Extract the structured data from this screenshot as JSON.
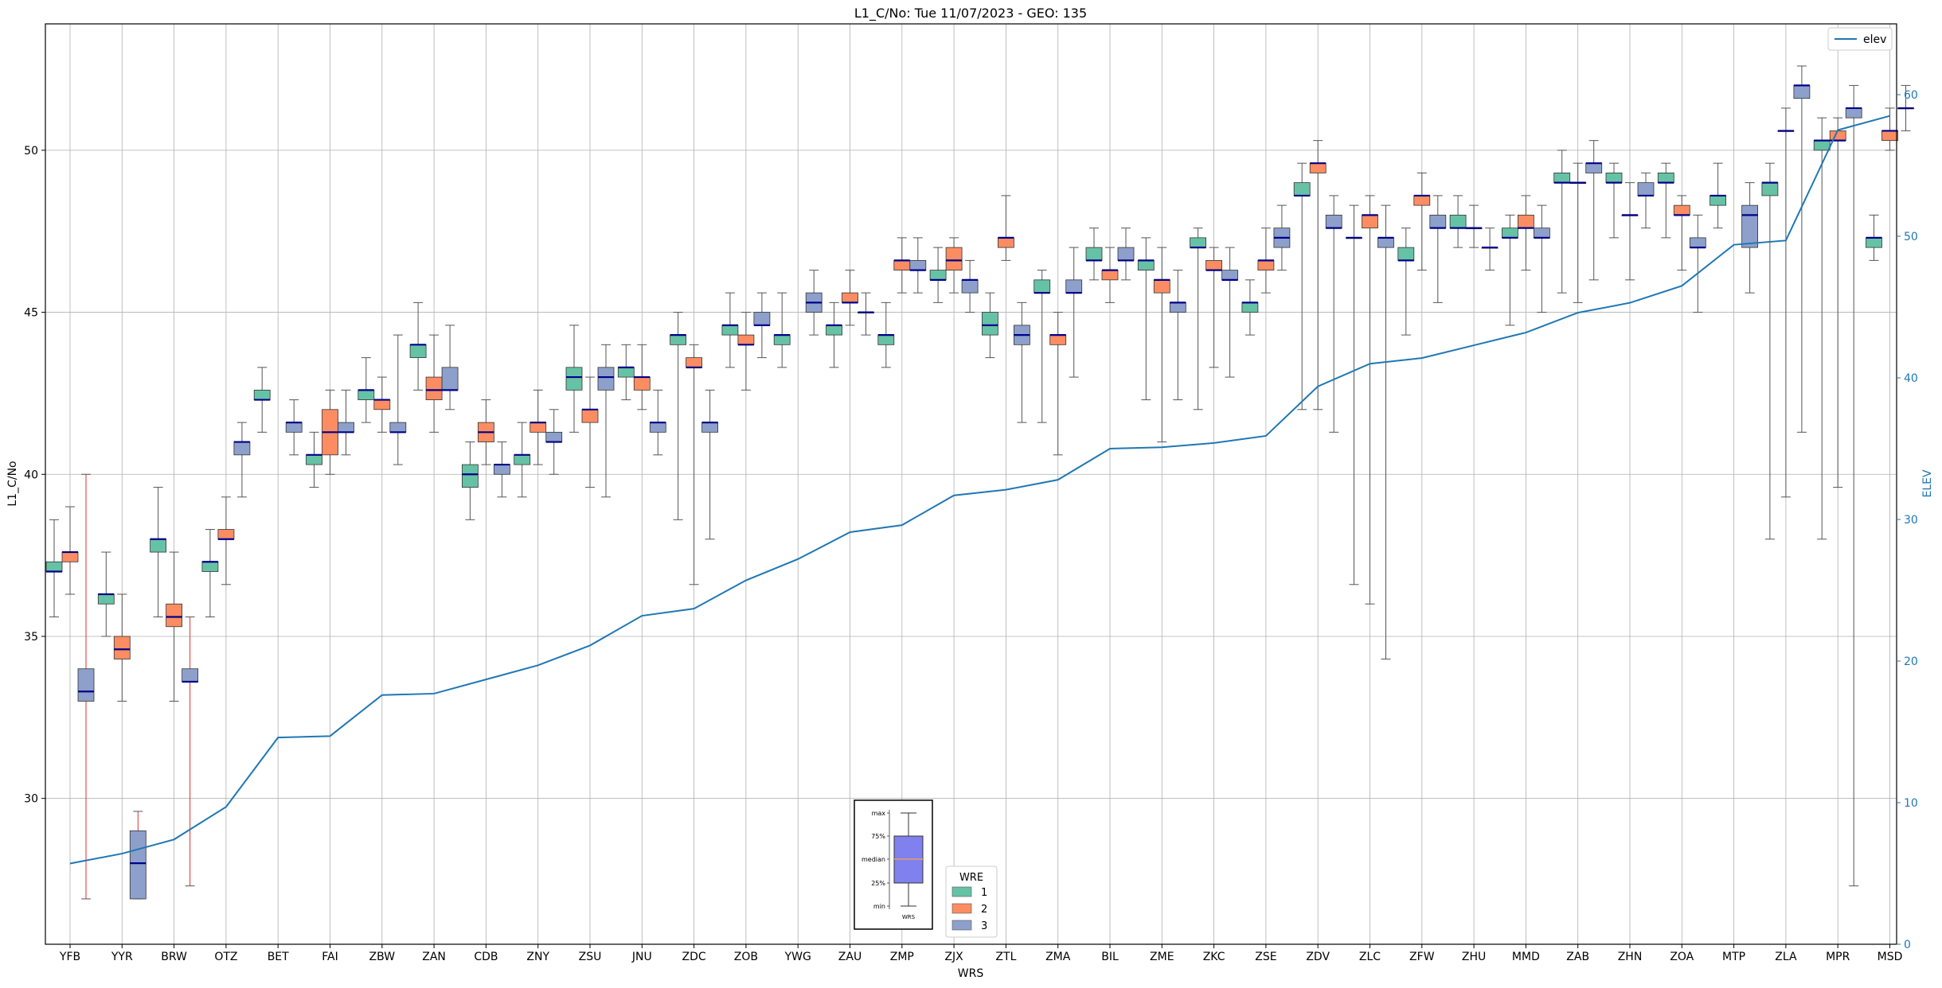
{
  "chart_data": {
    "type": "box",
    "title": "L1_C/No: Tue 11/07/2023 - GEO: 135",
    "xlabel": "WRS",
    "ylabel": "L1_C/No",
    "ylabel_right": "ELEV",
    "ylim": [
      25.5,
      53.9
    ],
    "ylim_right": [
      0,
      65
    ],
    "yticks": [
      30,
      35,
      40,
      45,
      50
    ],
    "yticks_right": [
      0,
      10,
      20,
      30,
      40,
      50,
      60
    ],
    "grid": true,
    "categories": [
      "YFB",
      "YYR",
      "BRW",
      "OTZ",
      "BET",
      "FAI",
      "ZBW",
      "ZAN",
      "CDB",
      "ZNY",
      "ZSU",
      "JNU",
      "ZDC",
      "ZOB",
      "YWG",
      "ZAU",
      "ZMP",
      "ZJX",
      "ZTL",
      "ZMA",
      "BIL",
      "ZME",
      "ZKC",
      "ZSE",
      "ZDV",
      "ZLC",
      "ZFW",
      "ZHU",
      "MMD",
      "ZAB",
      "ZHN",
      "ZOA",
      "MTP",
      "ZLA",
      "MPR",
      "MSD"
    ],
    "wre_colors": {
      "1": "#66c2a5",
      "2": "#fc8d62",
      "3": "#8da0cb"
    },
    "boxes": [
      {
        "cat": "YFB",
        "wre": 1,
        "min": 35.6,
        "q1": 37.0,
        "med": 37.0,
        "q3": 37.3,
        "max": 38.6
      },
      {
        "cat": "YFB",
        "wre": 2,
        "min": 36.3,
        "q1": 37.3,
        "med": 37.6,
        "q3": 37.6,
        "max": 39.0
      },
      {
        "cat": "YFB",
        "wre": 3,
        "min": 26.9,
        "q1": 33.0,
        "med": 33.3,
        "q3": 34.0,
        "max": 40.0,
        "whisker_color": "#e03030"
      },
      {
        "cat": "YYR",
        "wre": 1,
        "min": 35.0,
        "q1": 36.0,
        "med": 36.3,
        "q3": 36.3,
        "max": 37.6
      },
      {
        "cat": "YYR",
        "wre": 2,
        "min": 33.0,
        "q1": 34.3,
        "med": 34.6,
        "q3": 35.0,
        "max": 36.3
      },
      {
        "cat": "YYR",
        "wre": 3,
        "min": 26.9,
        "q1": 26.9,
        "med": 28.0,
        "q3": 29.0,
        "max": 29.6,
        "whisker_color": "#e03030"
      },
      {
        "cat": "BRW",
        "wre": 1,
        "min": 35.6,
        "q1": 37.6,
        "med": 38.0,
        "q3": 38.0,
        "max": 39.6
      },
      {
        "cat": "BRW",
        "wre": 2,
        "min": 33.0,
        "q1": 35.3,
        "med": 35.6,
        "q3": 36.0,
        "max": 37.6
      },
      {
        "cat": "BRW",
        "wre": 3,
        "min": 27.3,
        "q1": 33.6,
        "med": 33.6,
        "q3": 34.0,
        "max": 35.6,
        "whisker_color": "#e03030"
      },
      {
        "cat": "OTZ",
        "wre": 1,
        "min": 35.6,
        "q1": 37.0,
        "med": 37.3,
        "q3": 37.3,
        "max": 38.3
      },
      {
        "cat": "OTZ",
        "wre": 2,
        "min": 36.6,
        "q1": 38.0,
        "med": 38.0,
        "q3": 38.3,
        "max": 39.3
      },
      {
        "cat": "OTZ",
        "wre": 3,
        "min": 39.3,
        "q1": 40.6,
        "med": 41.0,
        "q3": 41.0,
        "max": 41.6
      },
      {
        "cat": "BET",
        "wre": 1,
        "min": 41.3,
        "q1": 42.3,
        "med": 42.3,
        "q3": 42.6,
        "max": 43.3
      },
      {
        "cat": "BET",
        "wre": 3,
        "min": 40.6,
        "q1": 41.3,
        "med": 41.6,
        "q3": 41.6,
        "max": 42.3
      },
      {
        "cat": "FAI",
        "wre": 1,
        "min": 39.6,
        "q1": 40.3,
        "med": 40.6,
        "q3": 40.6,
        "max": 41.3
      },
      {
        "cat": "FAI",
        "wre": 2,
        "min": 40.0,
        "q1": 40.6,
        "med": 41.3,
        "q3": 42.0,
        "max": 42.6
      },
      {
        "cat": "FAI",
        "wre": 3,
        "min": 40.6,
        "q1": 41.3,
        "med": 41.3,
        "q3": 41.6,
        "max": 42.6
      },
      {
        "cat": "ZBW",
        "wre": 1,
        "min": 41.6,
        "q1": 42.3,
        "med": 42.6,
        "q3": 42.6,
        "max": 43.6
      },
      {
        "cat": "ZBW",
        "wre": 2,
        "min": 41.3,
        "q1": 42.0,
        "med": 42.3,
        "q3": 42.3,
        "max": 43.0
      },
      {
        "cat": "ZBW",
        "wre": 3,
        "min": 40.3,
        "q1": 41.3,
        "med": 41.3,
        "q3": 41.6,
        "max": 44.3
      },
      {
        "cat": "ZAN",
        "wre": 1,
        "min": 42.6,
        "q1": 43.6,
        "med": 44.0,
        "q3": 44.0,
        "max": 45.3
      },
      {
        "cat": "ZAN",
        "wre": 2,
        "min": 41.3,
        "q1": 42.3,
        "med": 42.6,
        "q3": 43.0,
        "max": 44.3
      },
      {
        "cat": "ZAN",
        "wre": 3,
        "min": 42.0,
        "q1": 42.6,
        "med": 42.6,
        "q3": 43.3,
        "max": 44.6
      },
      {
        "cat": "CDB",
        "wre": 1,
        "min": 38.6,
        "q1": 39.6,
        "med": 40.0,
        "q3": 40.3,
        "max": 41.0
      },
      {
        "cat": "CDB",
        "wre": 2,
        "min": 40.3,
        "q1": 41.0,
        "med": 41.3,
        "q3": 41.6,
        "max": 42.3
      },
      {
        "cat": "CDB",
        "wre": 3,
        "min": 39.3,
        "q1": 40.0,
        "med": 40.3,
        "q3": 40.3,
        "max": 41.0
      },
      {
        "cat": "ZNY",
        "wre": 1,
        "min": 39.3,
        "q1": 40.3,
        "med": 40.6,
        "q3": 40.6,
        "max": 41.6
      },
      {
        "cat": "ZNY",
        "wre": 2,
        "min": 40.3,
        "q1": 41.3,
        "med": 41.6,
        "q3": 41.6,
        "max": 42.6
      },
      {
        "cat": "ZNY",
        "wre": 3,
        "min": 40.0,
        "q1": 41.0,
        "med": 41.0,
        "q3": 41.3,
        "max": 42.0
      },
      {
        "cat": "ZSU",
        "wre": 1,
        "min": 41.3,
        "q1": 42.6,
        "med": 43.0,
        "q3": 43.3,
        "max": 44.6
      },
      {
        "cat": "ZSU",
        "wre": 2,
        "min": 39.6,
        "q1": 41.6,
        "med": 42.0,
        "q3": 42.0,
        "max": 43.0
      },
      {
        "cat": "ZSU",
        "wre": 3,
        "min": 39.3,
        "q1": 42.6,
        "med": 43.0,
        "q3": 43.3,
        "max": 44.0
      },
      {
        "cat": "JNU",
        "wre": 1,
        "min": 42.3,
        "q1": 43.0,
        "med": 43.3,
        "q3": 43.3,
        "max": 44.0
      },
      {
        "cat": "JNU",
        "wre": 2,
        "min": 42.0,
        "q1": 42.6,
        "med": 43.0,
        "q3": 43.0,
        "max": 44.0
      },
      {
        "cat": "JNU",
        "wre": 3,
        "min": 40.6,
        "q1": 41.3,
        "med": 41.6,
        "q3": 41.6,
        "max": 42.6
      },
      {
        "cat": "ZDC",
        "wre": 1,
        "min": 38.6,
        "q1": 44.0,
        "med": 44.3,
        "q3": 44.3,
        "max": 45.0
      },
      {
        "cat": "ZDC",
        "wre": 2,
        "min": 36.6,
        "q1": 43.3,
        "med": 43.3,
        "q3": 43.6,
        "max": 44.0
      },
      {
        "cat": "ZDC",
        "wre": 3,
        "min": 38.0,
        "q1": 41.3,
        "med": 41.6,
        "q3": 41.6,
        "max": 42.6
      },
      {
        "cat": "ZOB",
        "wre": 1,
        "min": 43.3,
        "q1": 44.3,
        "med": 44.6,
        "q3": 44.6,
        "max": 45.6
      },
      {
        "cat": "ZOB",
        "wre": 2,
        "min": 42.6,
        "q1": 44.0,
        "med": 44.0,
        "q3": 44.3,
        "max": 45.0
      },
      {
        "cat": "ZOB",
        "wre": 3,
        "min": 43.6,
        "q1": 44.6,
        "med": 44.6,
        "q3": 45.0,
        "max": 45.6
      },
      {
        "cat": "YWG",
        "wre": 1,
        "min": 43.3,
        "q1": 44.0,
        "med": 44.3,
        "q3": 44.3,
        "max": 45.6
      },
      {
        "cat": "YWG",
        "wre": 3,
        "min": 44.3,
        "q1": 45.0,
        "med": 45.3,
        "q3": 45.6,
        "max": 46.3
      },
      {
        "cat": "ZAU",
        "wre": 1,
        "min": 43.3,
        "q1": 44.3,
        "med": 44.6,
        "q3": 44.6,
        "max": 45.3
      },
      {
        "cat": "ZAU",
        "wre": 2,
        "min": 44.6,
        "q1": 45.3,
        "med": 45.3,
        "q3": 45.6,
        "max": 46.3
      },
      {
        "cat": "ZAU",
        "wre": 3,
        "min": 44.3,
        "q1": 45.0,
        "med": 45.0,
        "q3": 45.0,
        "max": 45.6
      },
      {
        "cat": "ZMP",
        "wre": 1,
        "min": 43.3,
        "q1": 44.0,
        "med": 44.3,
        "q3": 44.3,
        "max": 45.3
      },
      {
        "cat": "ZMP",
        "wre": 2,
        "min": 45.6,
        "q1": 46.3,
        "med": 46.6,
        "q3": 46.6,
        "max": 47.3
      },
      {
        "cat": "ZMP",
        "wre": 3,
        "min": 45.6,
        "q1": 46.3,
        "med": 46.3,
        "q3": 46.6,
        "max": 47.3
      },
      {
        "cat": "ZJX",
        "wre": 1,
        "min": 45.3,
        "q1": 46.0,
        "med": 46.0,
        "q3": 46.3,
        "max": 47.0
      },
      {
        "cat": "ZJX",
        "wre": 2,
        "min": 45.6,
        "q1": 46.3,
        "med": 46.6,
        "q3": 47.0,
        "max": 47.3
      },
      {
        "cat": "ZJX",
        "wre": 3,
        "min": 45.0,
        "q1": 45.6,
        "med": 46.0,
        "q3": 46.0,
        "max": 46.6
      },
      {
        "cat": "ZTL",
        "wre": 1,
        "min": 43.6,
        "q1": 44.3,
        "med": 44.6,
        "q3": 45.0,
        "max": 45.6
      },
      {
        "cat": "ZTL",
        "wre": 2,
        "min": 46.6,
        "q1": 47.0,
        "med": 47.3,
        "q3": 47.3,
        "max": 48.6
      },
      {
        "cat": "ZTL",
        "wre": 3,
        "min": 41.6,
        "q1": 44.0,
        "med": 44.3,
        "q3": 44.6,
        "max": 45.3
      },
      {
        "cat": "ZMA",
        "wre": 1,
        "min": 41.6,
        "q1": 45.6,
        "med": 45.6,
        "q3": 46.0,
        "max": 46.3
      },
      {
        "cat": "ZMA",
        "wre": 2,
        "min": 40.6,
        "q1": 44.0,
        "med": 44.3,
        "q3": 44.3,
        "max": 45.0
      },
      {
        "cat": "ZMA",
        "wre": 3,
        "min": 43.0,
        "q1": 45.6,
        "med": 45.6,
        "q3": 46.0,
        "max": 47.0
      },
      {
        "cat": "BIL",
        "wre": 1,
        "min": 46.0,
        "q1": 46.6,
        "med": 46.6,
        "q3": 47.0,
        "max": 47.6
      },
      {
        "cat": "BIL",
        "wre": 2,
        "min": 45.3,
        "q1": 46.0,
        "med": 46.3,
        "q3": 46.3,
        "max": 47.0
      },
      {
        "cat": "BIL",
        "wre": 3,
        "min": 46.0,
        "q1": 46.6,
        "med": 46.6,
        "q3": 47.0,
        "max": 47.6
      },
      {
        "cat": "ZME",
        "wre": 1,
        "min": 42.3,
        "q1": 46.3,
        "med": 46.6,
        "q3": 46.6,
        "max": 47.3
      },
      {
        "cat": "ZME",
        "wre": 2,
        "min": 41.0,
        "q1": 45.6,
        "med": 46.0,
        "q3": 46.0,
        "max": 47.0
      },
      {
        "cat": "ZME",
        "wre": 3,
        "min": 42.3,
        "q1": 45.0,
        "med": 45.3,
        "q3": 45.3,
        "max": 46.3
      },
      {
        "cat": "ZKC",
        "wre": 1,
        "min": 42.0,
        "q1": 47.0,
        "med": 47.0,
        "q3": 47.3,
        "max": 47.6
      },
      {
        "cat": "ZKC",
        "wre": 2,
        "min": 43.3,
        "q1": 46.3,
        "med": 46.3,
        "q3": 46.6,
        "max": 47.0
      },
      {
        "cat": "ZKC",
        "wre": 3,
        "min": 43.0,
        "q1": 46.0,
        "med": 46.0,
        "q3": 46.3,
        "max": 47.0
      },
      {
        "cat": "ZSE",
        "wre": 1,
        "min": 44.3,
        "q1": 45.0,
        "med": 45.3,
        "q3": 45.3,
        "max": 46.0
      },
      {
        "cat": "ZSE",
        "wre": 2,
        "min": 45.6,
        "q1": 46.3,
        "med": 46.6,
        "q3": 46.6,
        "max": 47.6
      },
      {
        "cat": "ZSE",
        "wre": 3,
        "min": 46.3,
        "q1": 47.0,
        "med": 47.3,
        "q3": 47.6,
        "max": 48.3
      },
      {
        "cat": "ZDV",
        "wre": 1,
        "min": 42.0,
        "q1": 48.6,
        "med": 48.6,
        "q3": 49.0,
        "max": 49.6
      },
      {
        "cat": "ZDV",
        "wre": 2,
        "min": 42.0,
        "q1": 49.3,
        "med": 49.6,
        "q3": 49.6,
        "max": 50.3
      },
      {
        "cat": "ZDV",
        "wre": 3,
        "min": 41.3,
        "q1": 47.6,
        "med": 47.6,
        "q3": 48.0,
        "max": 48.6
      },
      {
        "cat": "ZLC",
        "wre": 1,
        "min": 36.6,
        "q1": 47.3,
        "med": 47.3,
        "q3": 47.3,
        "max": 48.3
      },
      {
        "cat": "ZLC",
        "wre": 2,
        "min": 36.0,
        "q1": 47.6,
        "med": 48.0,
        "q3": 48.0,
        "max": 48.6
      },
      {
        "cat": "ZLC",
        "wre": 3,
        "min": 34.3,
        "q1": 47.0,
        "med": 47.3,
        "q3": 47.3,
        "max": 48.3
      },
      {
        "cat": "ZFW",
        "wre": 1,
        "min": 44.3,
        "q1": 46.6,
        "med": 46.6,
        "q3": 47.0,
        "max": 47.6
      },
      {
        "cat": "ZFW",
        "wre": 2,
        "min": 46.3,
        "q1": 48.3,
        "med": 48.6,
        "q3": 48.6,
        "max": 49.3
      },
      {
        "cat": "ZFW",
        "wre": 3,
        "min": 45.3,
        "q1": 47.6,
        "med": 47.6,
        "q3": 48.0,
        "max": 48.6
      },
      {
        "cat": "ZHU",
        "wre": 1,
        "min": 47.0,
        "q1": 47.6,
        "med": 47.6,
        "q3": 48.0,
        "max": 48.6
      },
      {
        "cat": "ZHU",
        "wre": 2,
        "min": 47.0,
        "q1": 47.6,
        "med": 47.6,
        "q3": 47.6,
        "max": 48.3
      },
      {
        "cat": "ZHU",
        "wre": 3,
        "min": 46.3,
        "q1": 47.0,
        "med": 47.0,
        "q3": 47.0,
        "max": 47.6
      },
      {
        "cat": "MMD",
        "wre": 1,
        "min": 44.6,
        "q1": 47.3,
        "med": 47.3,
        "q3": 47.6,
        "max": 48.0
      },
      {
        "cat": "MMD",
        "wre": 2,
        "min": 46.3,
        "q1": 47.6,
        "med": 47.6,
        "q3": 48.0,
        "max": 48.6
      },
      {
        "cat": "MMD",
        "wre": 3,
        "min": 45.0,
        "q1": 47.3,
        "med": 47.3,
        "q3": 47.6,
        "max": 48.3
      },
      {
        "cat": "ZAB",
        "wre": 1,
        "min": 45.6,
        "q1": 49.0,
        "med": 49.0,
        "q3": 49.3,
        "max": 50.0
      },
      {
        "cat": "ZAB",
        "wre": 2,
        "min": 45.3,
        "q1": 49.0,
        "med": 49.0,
        "q3": 49.0,
        "max": 49.6
      },
      {
        "cat": "ZAB",
        "wre": 3,
        "min": 46.0,
        "q1": 49.3,
        "med": 49.6,
        "q3": 49.6,
        "max": 50.3
      },
      {
        "cat": "ZHN",
        "wre": 1,
        "min": 47.3,
        "q1": 49.0,
        "med": 49.0,
        "q3": 49.3,
        "max": 49.6
      },
      {
        "cat": "ZHN",
        "wre": 2,
        "min": 46.0,
        "q1": 48.0,
        "med": 48.0,
        "q3": 48.0,
        "max": 49.0
      },
      {
        "cat": "ZHN",
        "wre": 3,
        "min": 47.6,
        "q1": 48.6,
        "med": 48.6,
        "q3": 49.0,
        "max": 49.3
      },
      {
        "cat": "ZOA",
        "wre": 1,
        "min": 47.3,
        "q1": 49.0,
        "med": 49.0,
        "q3": 49.3,
        "max": 49.6
      },
      {
        "cat": "ZOA",
        "wre": 2,
        "min": 46.3,
        "q1": 48.0,
        "med": 48.0,
        "q3": 48.3,
        "max": 48.6
      },
      {
        "cat": "ZOA",
        "wre": 3,
        "min": 45.0,
        "q1": 47.0,
        "med": 47.0,
        "q3": 47.3,
        "max": 48.0
      },
      {
        "cat": "MTP",
        "wre": 1,
        "min": 47.6,
        "q1": 48.3,
        "med": 48.6,
        "q3": 48.6,
        "max": 49.6
      },
      {
        "cat": "MTP",
        "wre": 3,
        "min": 45.6,
        "q1": 47.0,
        "med": 48.0,
        "q3": 48.3,
        "max": 49.0
      },
      {
        "cat": "ZLA",
        "wre": 1,
        "min": 38.0,
        "q1": 48.6,
        "med": 49.0,
        "q3": 49.0,
        "max": 49.6
      },
      {
        "cat": "ZLA",
        "wre": 2,
        "min": 39.3,
        "q1": 50.6,
        "med": 50.6,
        "q3": 50.6,
        "max": 51.3
      },
      {
        "cat": "ZLA",
        "wre": 3,
        "min": 41.3,
        "q1": 51.6,
        "med": 52.0,
        "q3": 52.0,
        "max": 52.6
      },
      {
        "cat": "MPR",
        "wre": 1,
        "min": 38.0,
        "q1": 50.0,
        "med": 50.3,
        "q3": 50.3,
        "max": 51.0
      },
      {
        "cat": "MPR",
        "wre": 2,
        "min": 39.6,
        "q1": 50.3,
        "med": 50.3,
        "q3": 50.6,
        "max": 51.0
      },
      {
        "cat": "MPR",
        "wre": 3,
        "min": 27.3,
        "q1": 51.0,
        "med": 51.3,
        "q3": 51.3,
        "max": 52.0
      },
      {
        "cat": "MSD",
        "wre": 1,
        "min": 46.6,
        "q1": 47.0,
        "med": 47.3,
        "q3": 47.3,
        "max": 48.0
      },
      {
        "cat": "MSD",
        "wre": 2,
        "min": 50.0,
        "q1": 50.3,
        "med": 50.6,
        "q3": 50.6,
        "max": 51.3
      },
      {
        "cat": "MSD",
        "wre": 3,
        "min": 50.6,
        "q1": 51.3,
        "med": 51.3,
        "q3": 51.3,
        "max": 52.0
      }
    ],
    "elev_series": {
      "name": "elev",
      "color": "#1f77b4",
      "axis": "right",
      "values": [
        5.7,
        6.4,
        7.4,
        9.7,
        14.6,
        14.7,
        17.6,
        17.7,
        18.7,
        19.7,
        21.1,
        23.2,
        23.7,
        25.7,
        27.2,
        29.1,
        29.6,
        31.7,
        32.1,
        32.8,
        35.0,
        35.1,
        35.4,
        35.9,
        39.4,
        41.0,
        41.4,
        42.3,
        43.2,
        44.6,
        45.3,
        46.5,
        49.4,
        49.7,
        57.5,
        58.5
      ]
    },
    "legend_elev": {
      "label": "elev",
      "placement": "top-right"
    },
    "legend_wre": {
      "title": "WRE",
      "entries": [
        "1",
        "2",
        "3"
      ],
      "placement": "bottom-center"
    },
    "key_box": {
      "labels": [
        "max",
        "75%",
        "median",
        "25%",
        "min"
      ],
      "xlabel": "WRS",
      "fill": "#8080ee",
      "median_color": "#e0a060"
    }
  }
}
